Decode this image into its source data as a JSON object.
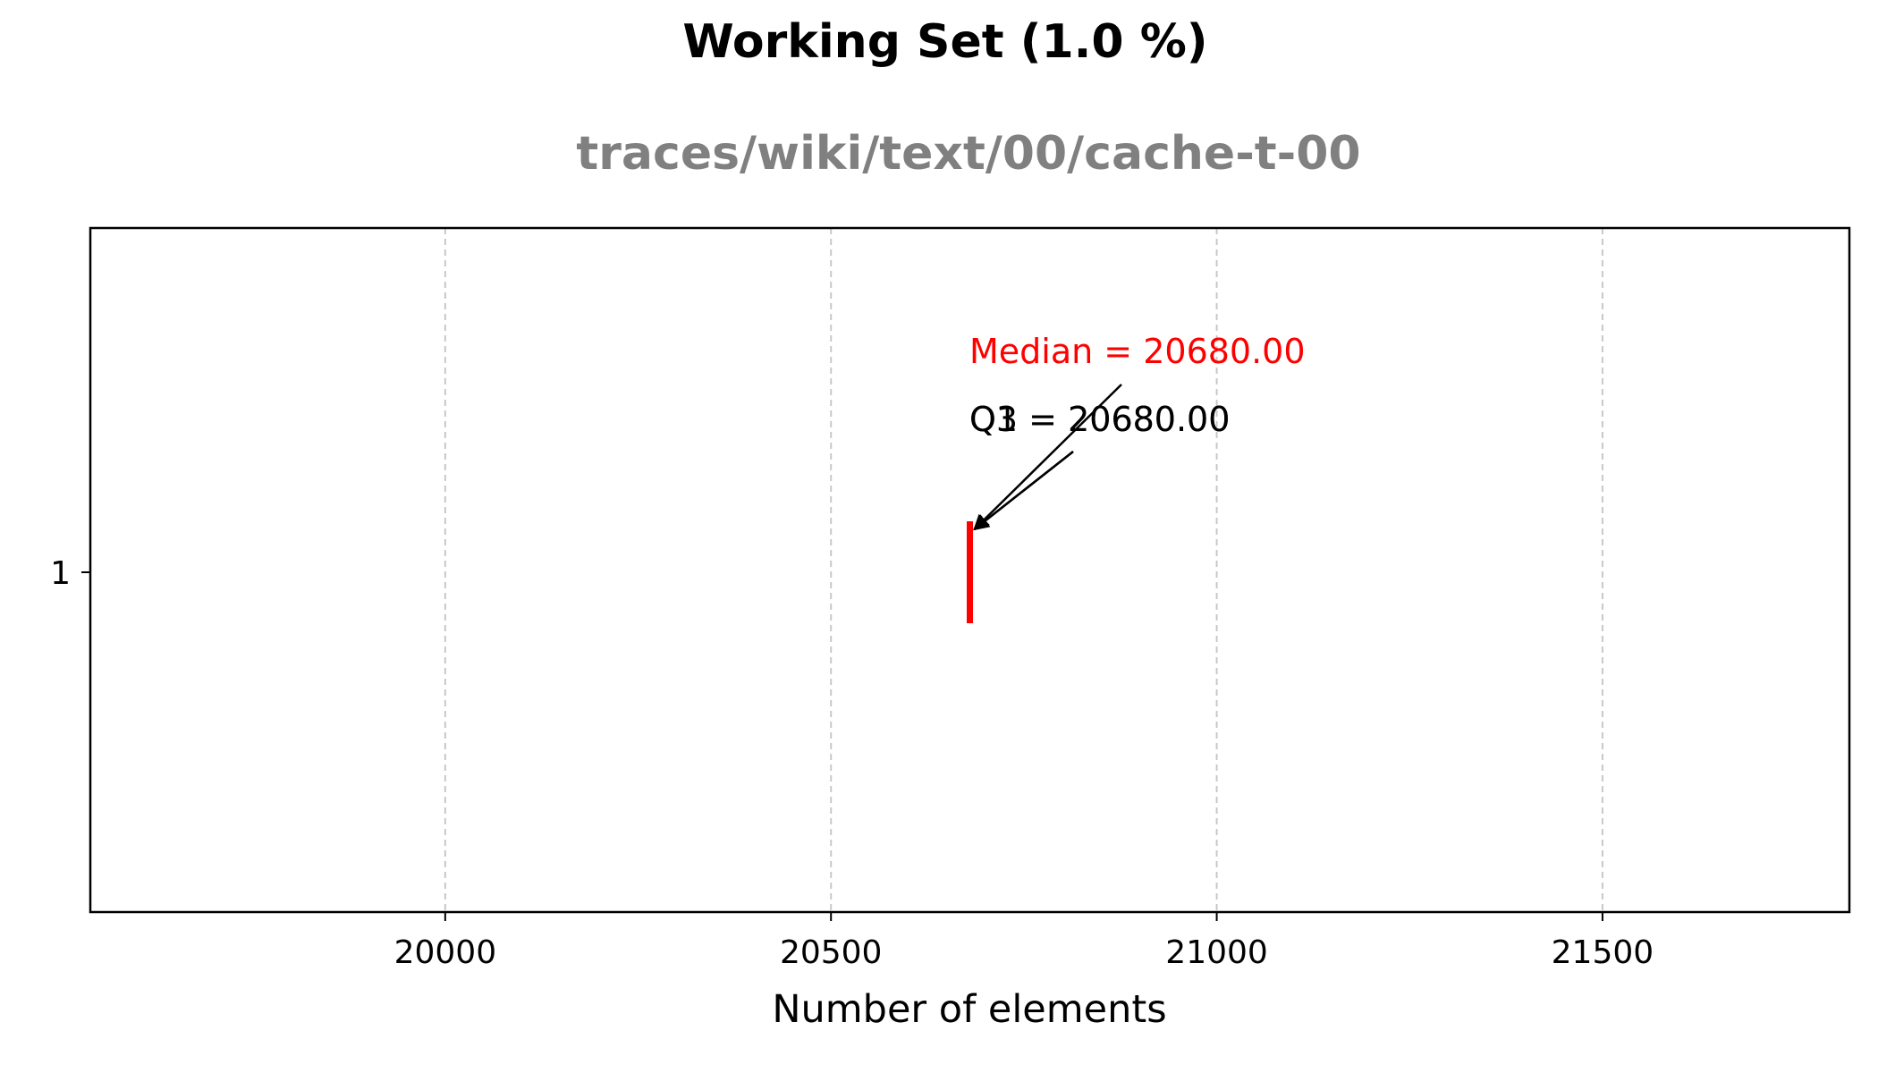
{
  "chart_data": {
    "type": "box",
    "title": "Working Set (1.0 %)",
    "subtitle": "traces/wiki/text/00/cache-t-00",
    "xlabel": "Number of elements",
    "ylabel": "",
    "xlim": [
      19540,
      21820
    ],
    "x_ticks": [
      20000,
      20500,
      21000,
      21500
    ],
    "y_ticks": [
      1
    ],
    "grid": "x-dashed",
    "series": [
      {
        "category": "1",
        "q1": 20680,
        "median": 20680,
        "q3": 20680
      }
    ],
    "annotations": [
      {
        "label": "Median = 20680.00",
        "value": 20680,
        "color": "#ff0000"
      },
      {
        "label": "Q1 = 20680.00",
        "value": 20680,
        "color": "#000000"
      },
      {
        "label": "Q3 = 20680.00",
        "value": 20680,
        "color": "#000000"
      }
    ],
    "colors": {
      "median": "#ff0000",
      "grid": "#c8c8c8",
      "subtitle": "#808080"
    }
  }
}
